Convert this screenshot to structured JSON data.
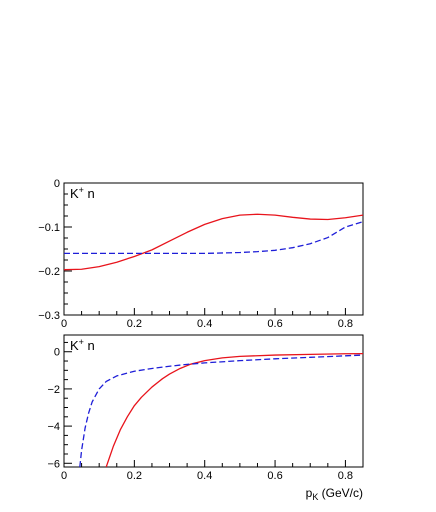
{
  "chart_data": [
    {
      "type": "line",
      "panel_label": "K",
      "panel_label_sup": "+",
      "panel_label_tail": " n",
      "xlim": [
        0,
        0.85
      ],
      "ylim": [
        -0.3,
        0
      ],
      "xticks": [
        "0",
        "0.2",
        "0.4",
        "0.6",
        "0.8"
      ],
      "xtick_values": [
        0,
        0.2,
        0.4,
        0.6,
        0.8
      ],
      "yticks": [
        "0",
        "−0.1",
        "−0.2",
        "−0.3"
      ],
      "ytick_values": [
        0,
        -0.1,
        -0.2,
        -0.3
      ],
      "grid": false,
      "series": [
        {
          "style": "solid",
          "color": "#e8141c",
          "x": [
            0,
            0.05,
            0.1,
            0.15,
            0.2,
            0.25,
            0.3,
            0.35,
            0.4,
            0.45,
            0.5,
            0.55,
            0.6,
            0.65,
            0.7,
            0.75,
            0.8,
            0.85
          ],
          "y": [
            -0.197,
            -0.196,
            -0.19,
            -0.18,
            -0.167,
            -0.152,
            -0.132,
            -0.112,
            -0.094,
            -0.081,
            -0.073,
            -0.071,
            -0.073,
            -0.078,
            -0.082,
            -0.083,
            -0.079,
            -0.073
          ]
        },
        {
          "style": "dashed",
          "color": "#1e1ed8",
          "x": [
            0,
            0.1,
            0.2,
            0.3,
            0.4,
            0.5,
            0.55,
            0.6,
            0.65,
            0.7,
            0.75,
            0.8,
            0.85
          ],
          "y": [
            -0.16,
            -0.16,
            -0.16,
            -0.16,
            -0.16,
            -0.158,
            -0.156,
            -0.153,
            -0.147,
            -0.138,
            -0.124,
            -0.1,
            -0.088
          ]
        }
      ]
    },
    {
      "type": "line",
      "panel_label": "K",
      "panel_label_sup": "+",
      "panel_label_tail": " n",
      "xlabel": "p",
      "xlabel_sub": "K",
      "xlabel_tail": " (GeV/c)",
      "xlim": [
        0,
        0.85
      ],
      "ylim": [
        -6.2,
        0.9
      ],
      "xticks": [
        "0",
        "0.2",
        "0.4",
        "0.6",
        "0.8"
      ],
      "xtick_values": [
        0,
        0.2,
        0.4,
        0.6,
        0.8
      ],
      "yticks": [
        "0",
        "−2",
        "−4",
        "−6"
      ],
      "ytick_values": [
        0,
        -2,
        -4,
        -6
      ],
      "grid": false,
      "series": [
        {
          "style": "solid",
          "color": "#e8141c",
          "x": [
            0.12,
            0.14,
            0.16,
            0.18,
            0.2,
            0.22,
            0.25,
            0.28,
            0.3,
            0.33,
            0.36,
            0.4,
            0.45,
            0.5,
            0.6,
            0.7,
            0.8,
            0.85
          ],
          "y": [
            -6.2,
            -5.1,
            -4.2,
            -3.5,
            -2.9,
            -2.45,
            -1.9,
            -1.45,
            -1.2,
            -0.9,
            -0.67,
            -0.48,
            -0.33,
            -0.25,
            -0.18,
            -0.14,
            -0.11,
            -0.1
          ]
        },
        {
          "style": "dashed",
          "color": "#1e1ed8",
          "x": [
            0.045,
            0.05,
            0.06,
            0.07,
            0.08,
            0.1,
            0.12,
            0.15,
            0.2,
            0.25,
            0.3,
            0.35,
            0.4,
            0.5,
            0.6,
            0.7,
            0.8,
            0.85
          ],
          "y": [
            -6.2,
            -5.3,
            -4.1,
            -3.3,
            -2.7,
            -2.0,
            -1.6,
            -1.3,
            -1.05,
            -0.9,
            -0.78,
            -0.68,
            -0.6,
            -0.48,
            -0.38,
            -0.3,
            -0.22,
            -0.18
          ]
        }
      ]
    }
  ]
}
